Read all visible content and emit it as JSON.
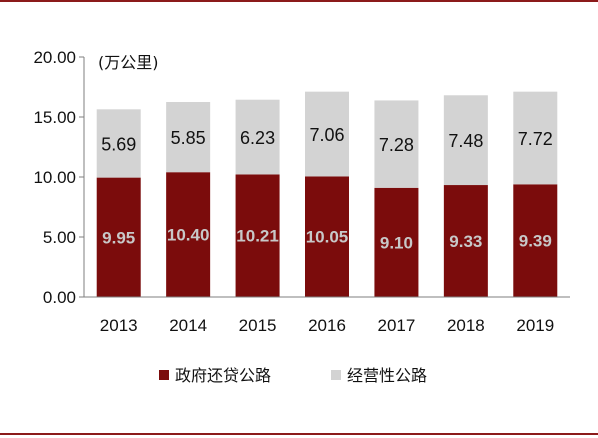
{
  "chart_data": {
    "type": "bar",
    "stacked": true,
    "categories": [
      "2013",
      "2014",
      "2015",
      "2016",
      "2017",
      "2018",
      "2019"
    ],
    "series": [
      {
        "name": "政府还贷公路",
        "values": [
          9.95,
          10.4,
          10.21,
          10.05,
          9.1,
          9.33,
          9.39
        ],
        "color": "#7b0c0c",
        "value_labels": [
          "9.95",
          "10.40",
          "10.21",
          "10.05",
          "9.10",
          "9.33",
          "9.39"
        ]
      },
      {
        "name": "经营性公路",
        "values": [
          5.69,
          5.85,
          6.23,
          7.06,
          7.28,
          7.48,
          7.72
        ],
        "color": "#d3d3d3",
        "value_labels": [
          "5.69",
          "5.85",
          "6.23",
          "7.06",
          "7.28",
          "7.48",
          "7.72"
        ]
      }
    ],
    "ylim": [
      0,
      20
    ],
    "yticks": [
      "0.00",
      "5.00",
      "10.00",
      "15.00",
      "20.00"
    ],
    "unit_label": "(万公里)",
    "legend_position": "bottom",
    "grid": false
  }
}
